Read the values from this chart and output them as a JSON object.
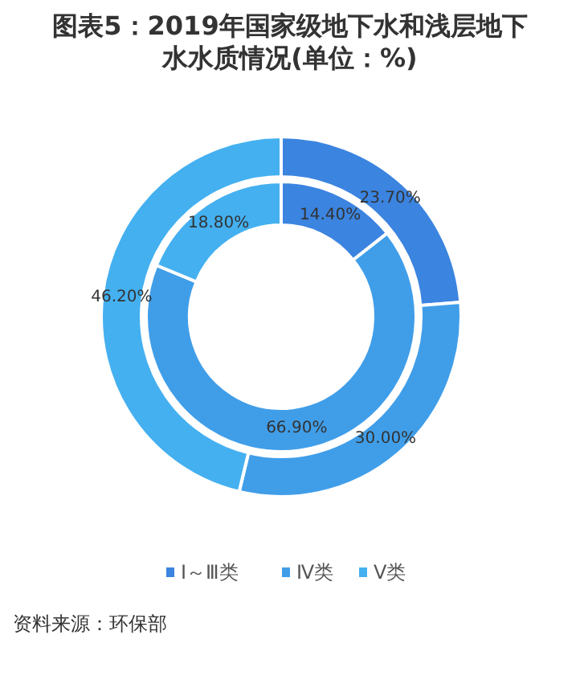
{
  "chart_data": {
    "type": "donut",
    "title": "图表5：2019年国家级地下水和浅层地下水水质情况(单位：%)",
    "categories": [
      "Ⅰ～Ⅲ类",
      "Ⅳ类",
      "Ⅴ类"
    ],
    "series": [
      {
        "values": [
          23.7,
          30.0,
          46.2
        ],
        "colors": [
          "#3b84e0",
          "#409ee9",
          "#44b0f0"
        ],
        "value_labels": [
          "23.70%",
          "30.00%",
          "46.20%"
        ]
      },
      {
        "values": [
          14.4,
          66.9,
          18.8
        ],
        "colors": [
          "#3b84e0",
          "#409ee9",
          "#44b0f0"
        ],
        "value_labels": [
          "14.40%",
          "66.90%",
          "18.80%"
        ]
      }
    ],
    "legend": "bottom",
    "annotations": [
      "资料来源：环保部"
    ]
  }
}
